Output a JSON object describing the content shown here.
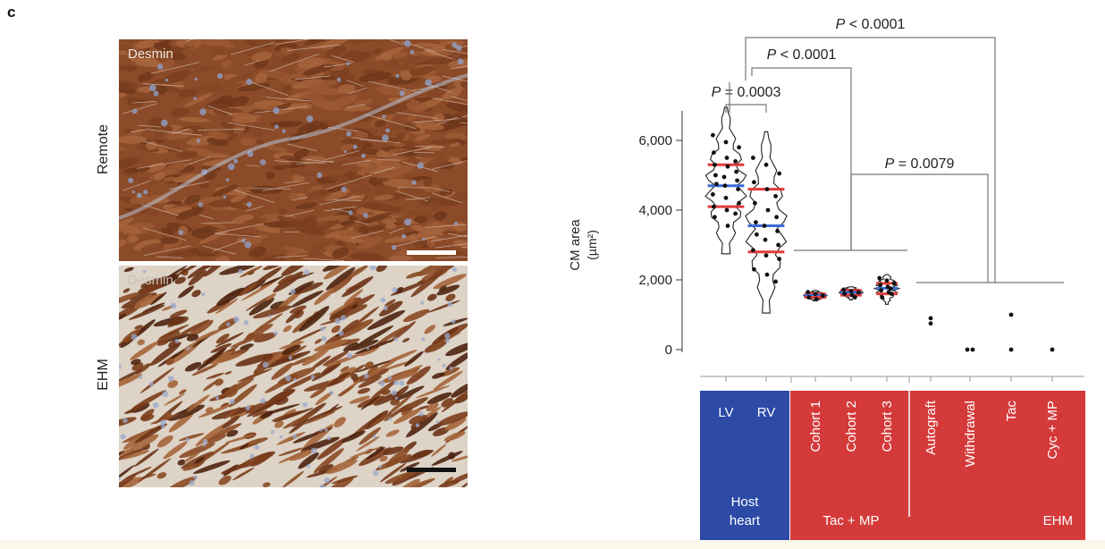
{
  "panel": {
    "letter": "c"
  },
  "micrographs": {
    "top": {
      "stain": "Desmin",
      "row_label": "Remote"
    },
    "bottom": {
      "stain": "Desmin",
      "row_label": "EHM"
    }
  },
  "colors": {
    "host": "#2c4aa6",
    "ehm": "#d53a3a",
    "tissue_brown": "#8a4a26",
    "background_blue": "#9fb0d0",
    "median_red": "#e23b3b",
    "quartile_blue": "#3a6ad6"
  },
  "chart_data": {
    "type": "violin",
    "ylabel": "CM area (µm²)",
    "ylabel_line1": "CM area",
    "ylabel_line2": "(µm²)",
    "ylim": [
      0,
      7000
    ],
    "yticks": [
      0,
      2000,
      4000,
      6000
    ],
    "ytick_labels": [
      "0",
      "2,000",
      "4,000",
      "6,000"
    ],
    "categories": [
      "LV",
      "RV",
      "Cohort 1",
      "Cohort 2",
      "Cohort 3",
      "Autograft",
      "Withdrawal",
      "Tac",
      "Cyc + MP"
    ],
    "groups": [
      {
        "label": "Host\nheart",
        "line1": "Host",
        "line2": "heart",
        "members": [
          "LV",
          "RV"
        ]
      },
      {
        "label": "Tac + MP",
        "members": [
          "Cohort 1",
          "Cohort 2",
          "Cohort 3"
        ]
      },
      {
        "label": "EHM",
        "members": [
          "Autograft",
          "Withdrawal",
          "Tac",
          "Cyc + MP"
        ]
      }
    ],
    "series": [
      {
        "category": "LV",
        "min": 2750,
        "max": 6950,
        "median": 4700,
        "q1": 4100,
        "q3": 5300,
        "points": [
          6150,
          5950,
          5800,
          5650,
          5500,
          5400,
          5300,
          5250,
          5100,
          5000,
          4950,
          4850,
          4750,
          4700,
          4600,
          4450,
          4350,
          4200,
          4100,
          4000,
          3900,
          3800,
          3550
        ]
      },
      {
        "category": "RV",
        "min": 1050,
        "max": 6250,
        "median": 3550,
        "q1": 2800,
        "q3": 4600,
        "points": [
          5500,
          5300,
          5050,
          4800,
          4600,
          4400,
          4200,
          4000,
          3800,
          3650,
          3550,
          3400,
          3300,
          3150,
          3000,
          2850,
          2700,
          2600,
          2300,
          2150,
          1950
        ]
      },
      {
        "category": "Cohort 1",
        "min": 1400,
        "max": 1700,
        "median": 1550,
        "q1": 1500,
        "q3": 1600,
        "points": [
          1650,
          1600,
          1550,
          1500,
          1450
        ]
      },
      {
        "category": "Cohort 2",
        "min": 1420,
        "max": 1800,
        "median": 1640,
        "q1": 1560,
        "q3": 1700,
        "points": [
          1720,
          1680,
          1640,
          1600,
          1560,
          1500
        ]
      },
      {
        "category": "Cohort 3",
        "min": 1300,
        "max": 2150,
        "median": 1760,
        "q1": 1600,
        "q3": 1900,
        "points": [
          2050,
          1980,
          1900,
          1850,
          1800,
          1750,
          1700,
          1650,
          1600,
          1500
        ]
      },
      {
        "category": "Autograft",
        "points": [
          900,
          750
        ]
      },
      {
        "category": "Withdrawal",
        "points": [
          0,
          0
        ]
      },
      {
        "category": "Tac",
        "points": [
          1000,
          0
        ]
      },
      {
        "category": "Cyc + MP",
        "points": [
          0
        ]
      }
    ],
    "comparisons": [
      {
        "label": "P = 0.0003",
        "p_prefix": "P",
        "p_rest": " = 0.0003",
        "from": "LV",
        "to": "RV"
      },
      {
        "label": "P < 0.0001",
        "p_prefix": "P",
        "p_rest": " < 0.0001",
        "from": "Host heart",
        "to": "Tac + MP"
      },
      {
        "label": "P < 0.0001",
        "p_prefix": "P",
        "p_rest": " < 0.0001",
        "from": "Host heart",
        "to": "EHM"
      },
      {
        "label": "P = 0.0079",
        "p_prefix": "P",
        "p_rest": " = 0.0079",
        "from": "Tac + MP",
        "to": "EHM"
      }
    ]
  }
}
